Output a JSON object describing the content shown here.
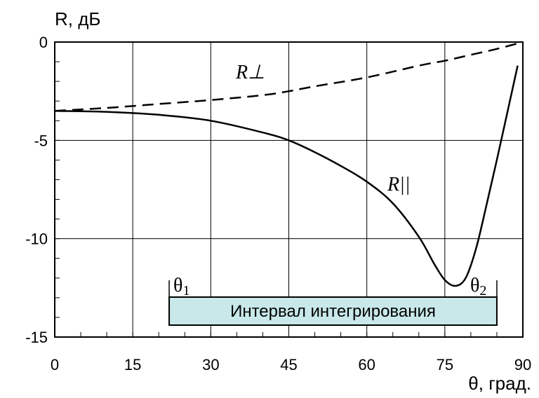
{
  "chart_data": {
    "type": "line",
    "xlabel": "θ, град.",
    "ylabel": "R, дБ",
    "xlim": [
      0,
      90
    ],
    "ylim": [
      -15,
      0
    ],
    "x_ticks": [
      0,
      15,
      30,
      45,
      60,
      75,
      90
    ],
    "y_ticks": [
      0,
      -5,
      -10,
      -15
    ],
    "grid": true,
    "series": [
      {
        "name": "R⊥",
        "style": "dashed",
        "x": [
          0,
          10,
          20,
          30,
          40,
          45,
          50,
          60,
          70,
          75,
          80,
          85,
          90
        ],
        "y": [
          -3.5,
          -3.35,
          -3.15,
          -2.95,
          -2.7,
          -2.5,
          -2.25,
          -1.8,
          -1.2,
          -0.95,
          -0.65,
          -0.35,
          0
        ]
      },
      {
        "name": "R||",
        "style": "solid",
        "x": [
          0,
          10,
          20,
          30,
          40,
          45,
          50,
          55,
          60,
          65,
          70,
          73,
          75,
          77,
          79,
          81,
          83,
          85,
          87,
          89
        ],
        "y": [
          -3.5,
          -3.55,
          -3.7,
          -4.0,
          -4.6,
          -5.0,
          -5.6,
          -6.3,
          -7.1,
          -8.2,
          -9.9,
          -11.3,
          -12.1,
          -12.4,
          -12.0,
          -10.5,
          -8.3,
          -6.0,
          -3.6,
          -1.2
        ]
      }
    ],
    "annotations": {
      "theta1": "θ1",
      "theta2": "θ2",
      "interval_label": "Интервал интегрирования",
      "interval_start": 22,
      "interval_end": 85,
      "box_color": "#c8e8ea"
    }
  }
}
